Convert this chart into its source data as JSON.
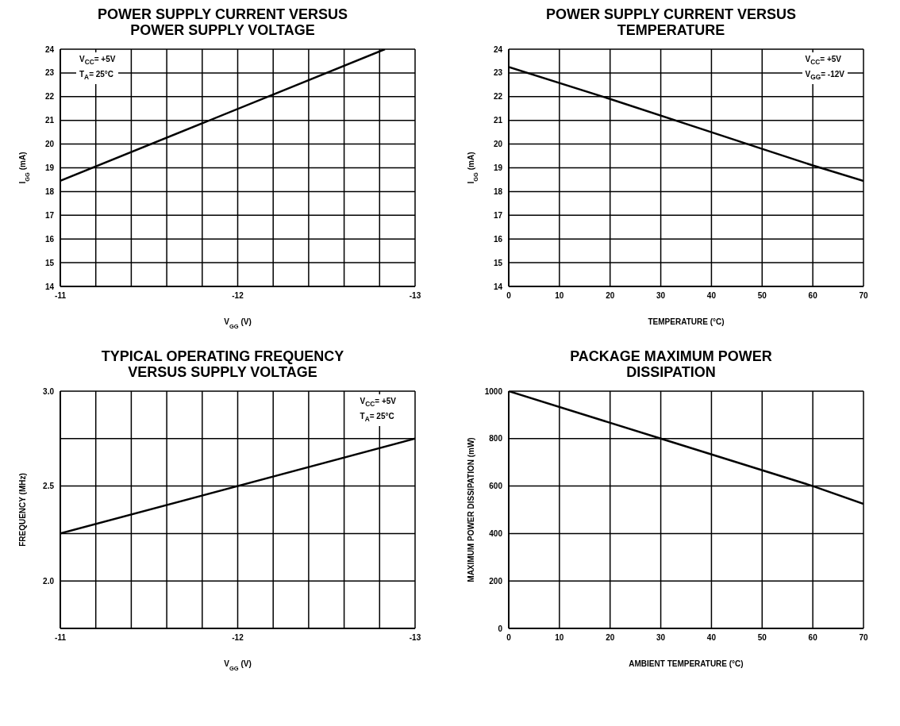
{
  "chart_data": [
    {
      "type": "line",
      "title": "POWER SUPPLY CURRENT VERSUS POWER SUPPLY VOLTAGE",
      "xlabel": "V$_{GG}$ (V)",
      "ylabel": "I$_{GG}$ (mA)",
      "annotations": [
        "V$_{CC}$= +5V",
        "T$_{A}$= 25°C"
      ],
      "x": [
        -11,
        -12.83
      ],
      "series": [
        {
          "color": "#000000",
          "values": [
            18.45,
            24
          ]
        }
      ],
      "xlim": [
        -11,
        -13
      ],
      "xticks": [
        -11,
        {
          "value": -11.2,
          "label": null
        },
        {
          "value": -11.4,
          "label": null
        },
        {
          "value": -11.6,
          "label": null
        },
        {
          "value": -11.8,
          "label": null
        },
        -12,
        {
          "value": -12.2,
          "label": null
        },
        {
          "value": -12.4,
          "label": null
        },
        {
          "value": -12.6,
          "label": null
        },
        {
          "value": -12.8,
          "label": null
        },
        -13
      ],
      "ylim": [
        14,
        24
      ],
      "yticks": [
        14,
        15,
        16,
        17,
        18,
        19,
        20,
        21,
        22,
        23,
        24
      ],
      "grid": true,
      "line_style": "solid"
    },
    {
      "type": "line",
      "title": "POWER SUPPLY CURRENT VERSUS TEMPERATURE",
      "xlabel": "TEMPERATURE (°C)",
      "ylabel": "I$_{GG}$ (mA)",
      "annotations": [
        "V$_{CC}$= +5V",
        "V$_{GG}$= -12V"
      ],
      "x": [
        0,
        20,
        40,
        50,
        60,
        70
      ],
      "series": [
        {
          "color": "#000000",
          "values": [
            23.25,
            21.9,
            20.5,
            19.8,
            19.1,
            18.45
          ]
        }
      ],
      "xlim": [
        0,
        70
      ],
      "xticks": [
        0,
        10,
        20,
        30,
        40,
        50,
        60,
        70
      ],
      "ylim": [
        14,
        24
      ],
      "yticks": [
        14,
        15,
        16,
        17,
        18,
        19,
        20,
        21,
        22,
        23,
        24
      ],
      "grid": true,
      "line_style": "solid"
    },
    {
      "type": "line",
      "title": "TYPICAL OPERATING FREQUENCY VERSUS SUPPLY VOLTAGE",
      "xlabel": "V$_{GG}$ (V)",
      "ylabel": "FREQUENCY (MHz)",
      "annotations": [
        "V$_{CC}$= +5V",
        "T$_{A}$= 25°C"
      ],
      "x": [
        -11,
        -13
      ],
      "series": [
        {
          "color": "#000000",
          "values": [
            2.25,
            2.75
          ]
        }
      ],
      "xlim": [
        -11,
        -13
      ],
      "xticks": [
        -11,
        {
          "value": -11.2,
          "label": null
        },
        {
          "value": -11.4,
          "label": null
        },
        {
          "value": -11.6,
          "label": null
        },
        {
          "value": -11.8,
          "label": null
        },
        -12,
        {
          "value": -12.2,
          "label": null
        },
        {
          "value": -12.4,
          "label": null
        },
        {
          "value": -12.6,
          "label": null
        },
        {
          "value": -12.8,
          "label": null
        },
        -13
      ],
      "ylim": [
        1.75,
        3
      ],
      "yticks": [
        {
          "value": 2,
          "label": "2.0"
        },
        {
          "value": 2.25,
          "label": null
        },
        {
          "value": 2.5,
          "label": "2.5"
        },
        {
          "value": 2.75,
          "label": null
        },
        {
          "value": 3,
          "label": "3.0"
        }
      ],
      "grid": true,
      "line_style": "solid"
    },
    {
      "type": "line",
      "title": "PACKAGE MAXIMUM POWER DISSIPATION",
      "xlabel": "AMBIENT TEMPERATURE (°C)",
      "ylabel": "MAXIMUM POWER DISSIPATION (mW)",
      "x": [
        0,
        30,
        60,
        70
      ],
      "series": [
        {
          "color": "#000000",
          "values": [
            1000,
            800,
            600,
            525
          ]
        }
      ],
      "xlim": [
        0,
        70
      ],
      "xticks": [
        0,
        10,
        20,
        30,
        40,
        50,
        60,
        70
      ],
      "ylim": [
        0,
        1000
      ],
      "yticks": [
        0,
        200,
        400,
        600,
        800,
        1000
      ],
      "grid": true,
      "line_style": "solid"
    }
  ]
}
